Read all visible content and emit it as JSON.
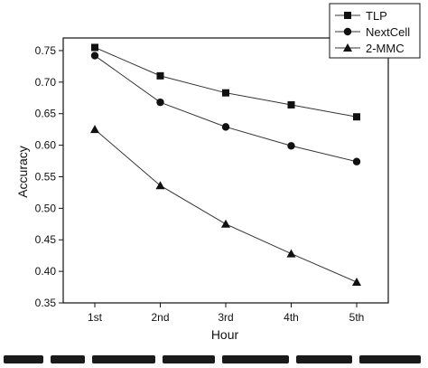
{
  "chart_data": {
    "type": "line",
    "categories": [
      "1st",
      "2nd",
      "3rd",
      "4th",
      "5th"
    ],
    "xlabel": "Hour",
    "ylabel": "Accuracy",
    "ylim": [
      0.35,
      0.77
    ],
    "yticks": [
      "0.35",
      "0.40",
      "0.45",
      "0.50",
      "0.55",
      "0.60",
      "0.65",
      "0.70",
      "0.75"
    ],
    "legend_position": "top-right",
    "grid": false,
    "series": [
      {
        "name": "TLP",
        "marker": "square",
        "values": [
          0.755,
          0.71,
          0.683,
          0.664,
          0.645
        ]
      },
      {
        "name": "NextCell",
        "marker": "circle",
        "values": [
          0.742,
          0.668,
          0.629,
          0.599,
          0.574
        ]
      },
      {
        "name": "2-MMC",
        "marker": "triangle",
        "values": [
          0.625,
          0.536,
          0.475,
          0.428,
          0.383
        ]
      }
    ],
    "colors": {
      "line": "#333333",
      "marker": "#111111",
      "axis": "#111111"
    }
  }
}
